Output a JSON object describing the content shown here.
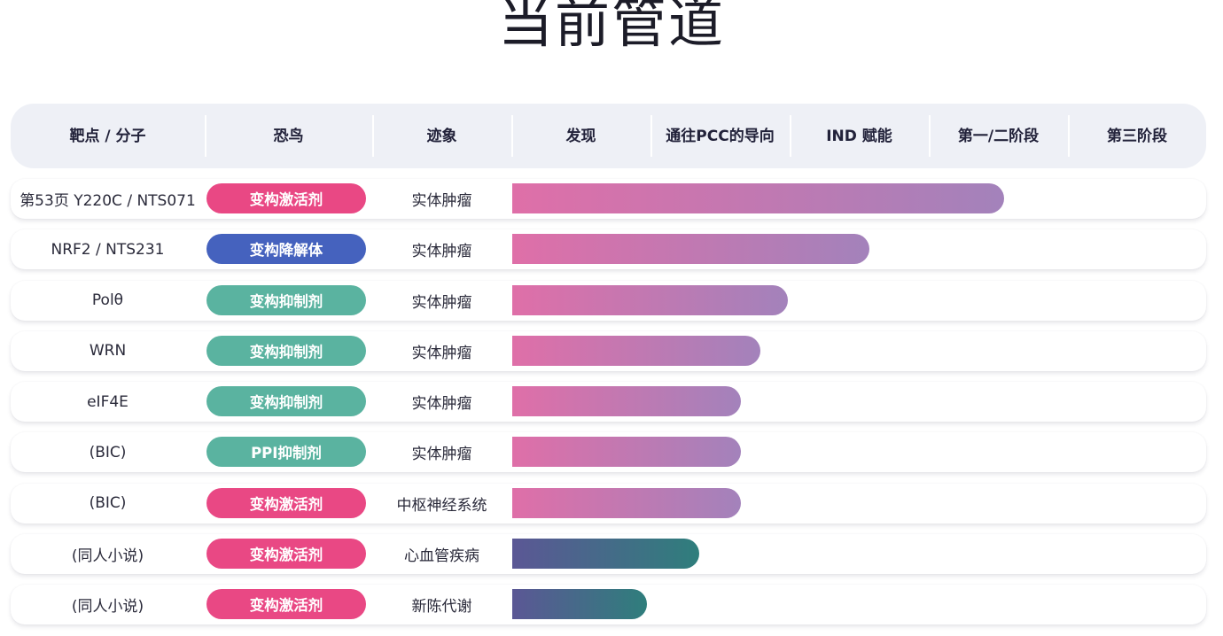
{
  "page": {
    "title": "当前管道"
  },
  "pipeline": {
    "columns": [
      "靶点 / 分子",
      "恐鸟",
      "迹象",
      "发现",
      "通往PCC的导向",
      "IND 赋能",
      "第一/二阶段",
      "第三阶段"
    ],
    "stage_columns": [
      "发现",
      "通往PCC的导向",
      "IND 赋能",
      "第一/二阶段",
      "第三阶段"
    ],
    "modality_colors": {
      "activator": "#e94884",
      "degrader": "#4562be",
      "inhibitor": "#5ab3a0"
    },
    "bar_gradients": {
      "oncology": [
        "#df6fa8",
        "#a382bb"
      ],
      "other": [
        "#5b5795",
        "#2f7e7c"
      ]
    },
    "rows": [
      {
        "target": "第53页 Y220C / NTS071",
        "modality": "变构激活剂",
        "modality_type": "activator",
        "indication": "实体肿瘤",
        "progress": 0.475,
        "bar_style": "oncology"
      },
      {
        "target": "NRF2 / NTS231",
        "modality": "变构降解体",
        "modality_type": "degrader",
        "indication": "实体肿瘤",
        "progress": 0.345,
        "bar_style": "oncology"
      },
      {
        "target": "Polθ",
        "modality": "变构抑制剂",
        "modality_type": "inhibitor",
        "indication": "实体肿瘤",
        "progress": 0.266,
        "bar_style": "oncology"
      },
      {
        "target": "WRN",
        "modality": "变构抑制剂",
        "modality_type": "inhibitor",
        "indication": "实体肿瘤",
        "progress": 0.24,
        "bar_style": "oncology"
      },
      {
        "target": "eIF4E",
        "modality": "变构抑制剂",
        "modality_type": "inhibitor",
        "indication": "实体肿瘤",
        "progress": 0.221,
        "bar_style": "oncology"
      },
      {
        "target": "(BIC)",
        "modality": "PPI抑制剂",
        "modality_type": "inhibitor",
        "indication": "实体肿瘤",
        "progress": 0.221,
        "bar_style": "oncology"
      },
      {
        "target": "(BIC)",
        "modality": "变构激活剂",
        "modality_type": "activator",
        "indication": "中枢神经系统",
        "progress": 0.221,
        "bar_style": "oncology"
      },
      {
        "target": "(同人小说)",
        "modality": "变构激活剂",
        "modality_type": "activator",
        "indication": "心血管疾病",
        "progress": 0.181,
        "bar_style": "other"
      },
      {
        "target": "(同人小说)",
        "modality": "变构激活剂",
        "modality_type": "activator",
        "indication": "新陈代谢",
        "progress": 0.13,
        "bar_style": "other"
      }
    ]
  }
}
